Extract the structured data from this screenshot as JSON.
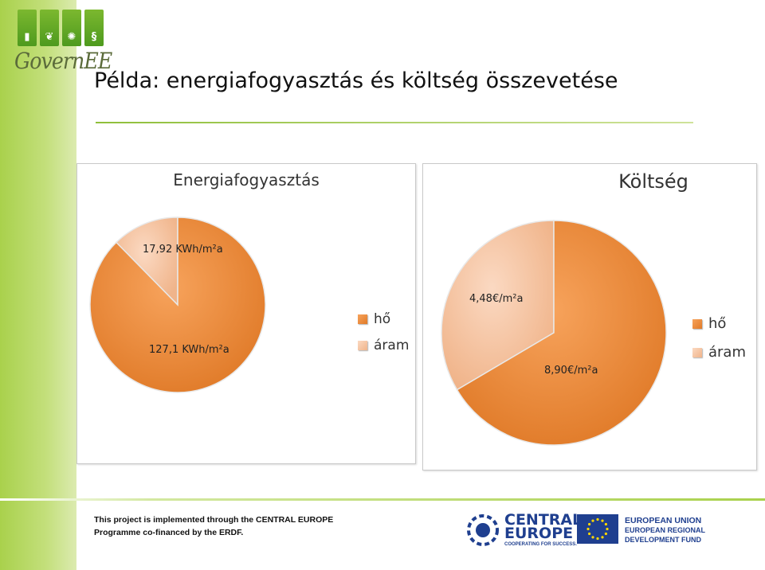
{
  "header": {
    "title": "Példa: energiafogyasztás és költség összevetése",
    "logo_text": "GovernEE",
    "logo_icons": [
      "building-icon",
      "leaf-icon",
      "sun-icon",
      "paragraph-icon"
    ]
  },
  "colors": {
    "heat": "#ee8a3a",
    "heat_light": "#f7b06a",
    "power": "#f4b896",
    "power_light": "#fad5bd",
    "accent_green": "#a9d14c",
    "eu_blue": "#1f3f8f"
  },
  "chart_data": [
    {
      "type": "pie",
      "title": "Energiafogyasztás",
      "categories": [
        "hő",
        "áram"
      ],
      "values": [
        127.1,
        17.92
      ],
      "data_labels": [
        "127,1 KWh/m²a",
        "17,92 KWh/m²a"
      ],
      "legend": "right",
      "legend_entries": [
        "hő",
        "áram"
      ]
    },
    {
      "type": "pie",
      "title": "Költség",
      "categories": [
        "hő",
        "áram"
      ],
      "values": [
        8.9,
        4.48
      ],
      "data_labels": [
        "8,90€/m²a",
        "4,48€/m²a"
      ],
      "legend": "right",
      "legend_entries": [
        "hő",
        "áram"
      ]
    }
  ],
  "footer": {
    "line1": "This project is implemented through the CENTRAL EUROPE",
    "line2": "Programme co-financed by the ERDF.",
    "ce_logo_line1": "CENTRAL",
    "ce_logo_line2": "EUROPE",
    "ce_logo_tagline": "COOPERATING FOR SUCCESS.",
    "eu_line1": "EUROPEAN UNION",
    "eu_line2": "EUROPEAN REGIONAL",
    "eu_line3": "DEVELOPMENT FUND"
  }
}
